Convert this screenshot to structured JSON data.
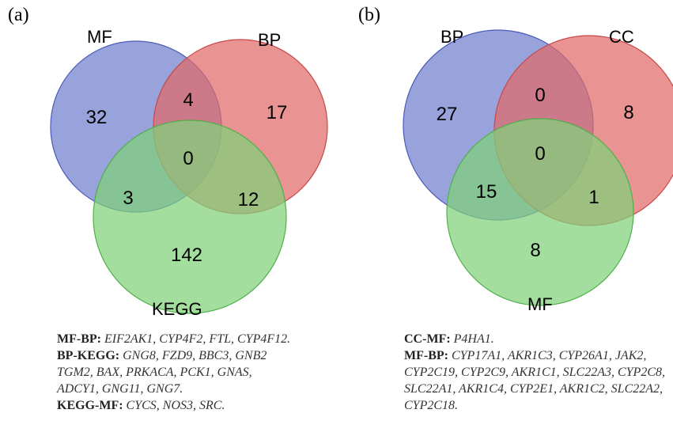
{
  "panels": [
    {
      "letter": "(a)",
      "sets": [
        {
          "label": "MF",
          "color": "#6f7fcc"
        },
        {
          "label": "BP",
          "color": "#e06a6a"
        },
        {
          "label": "KEGG",
          "color": "#7fd17a"
        }
      ],
      "counts": {
        "only_1": "32",
        "only_2": "17",
        "only_3": "142",
        "pair_12": "4",
        "pair_13": "3",
        "pair_23": "12",
        "all": "0"
      },
      "caption": [
        {
          "key": "MF-BP:",
          "genes": "EIF2AK1, CYP4F2, FTL, CYP4F12."
        },
        {
          "key": "BP-KEGG:",
          "genes": "GNG8, FZD9, BBC3, GNB2 TGM2, BAX, PRKACA, PCK1, GNAS, ADCY1, GNG11, GNG7."
        },
        {
          "key": "KEGG-MF:",
          "genes": "CYCS, NOS3, SRC."
        }
      ]
    },
    {
      "letter": "(b)",
      "sets": [
        {
          "label": "BP",
          "color": "#6f7fcc"
        },
        {
          "label": "CC",
          "color": "#e06a6a"
        },
        {
          "label": "MF",
          "color": "#7fd17a"
        }
      ],
      "counts": {
        "only_1": "27",
        "only_2": "8",
        "only_3": "8",
        "pair_12": "0",
        "pair_13": "15",
        "pair_23": "1",
        "all": "0"
      },
      "caption": [
        {
          "key": "CC-MF:",
          "genes": "P4HA1."
        },
        {
          "key": "MF-BP:",
          "genes": "CYP17A1, AKR1C3, CYP26A1, JAK2, CYP2C19, CYP2C9, AKR1C1, SLC22A3, CYP2C8, SLC22A1, AKR1C4, CYP2E1, AKR1C2, SLC22A2, CYP2C18."
        }
      ]
    }
  ]
}
